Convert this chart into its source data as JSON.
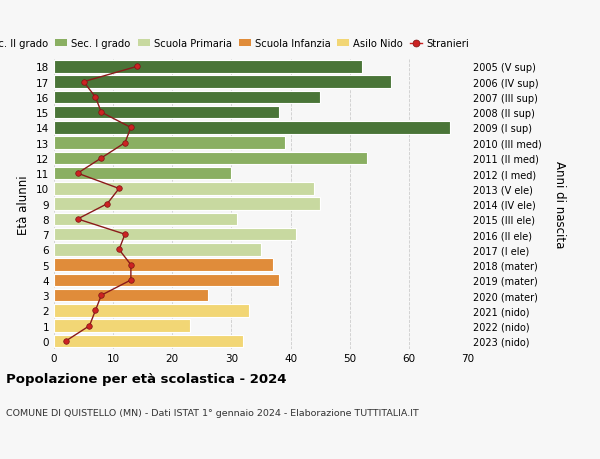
{
  "ages": [
    0,
    1,
    2,
    3,
    4,
    5,
    6,
    7,
    8,
    9,
    10,
    11,
    12,
    13,
    14,
    15,
    16,
    17,
    18
  ],
  "right_labels": [
    "2023 (nido)",
    "2022 (nido)",
    "2021 (nido)",
    "2020 (mater)",
    "2019 (mater)",
    "2018 (mater)",
    "2017 (I ele)",
    "2016 (II ele)",
    "2015 (III ele)",
    "2014 (IV ele)",
    "2013 (V ele)",
    "2012 (I med)",
    "2011 (II med)",
    "2010 (III med)",
    "2009 (I sup)",
    "2008 (II sup)",
    "2007 (III sup)",
    "2006 (IV sup)",
    "2005 (V sup)"
  ],
  "bar_values": [
    32,
    23,
    33,
    26,
    38,
    37,
    35,
    41,
    31,
    45,
    44,
    30,
    53,
    39,
    67,
    38,
    45,
    57,
    52
  ],
  "stranieri": [
    2,
    6,
    7,
    8,
    13,
    13,
    11,
    12,
    4,
    9,
    11,
    4,
    8,
    12,
    13,
    8,
    7,
    5,
    14
  ],
  "bar_colors": [
    "#f2d675",
    "#f2d675",
    "#f2d675",
    "#e08c3a",
    "#e08c3a",
    "#e08c3a",
    "#c8d9a0",
    "#c8d9a0",
    "#c8d9a0",
    "#c8d9a0",
    "#c8d9a0",
    "#8aaf62",
    "#8aaf62",
    "#8aaf62",
    "#4a7538",
    "#4a7538",
    "#4a7538",
    "#4a7538",
    "#4a7538"
  ],
  "legend_labels": [
    "Sec. II grado",
    "Sec. I grado",
    "Scuola Primaria",
    "Scuola Infanzia",
    "Asilo Nido",
    "Stranieri"
  ],
  "legend_colors": [
    "#4a7538",
    "#8aaf62",
    "#c8d9a0",
    "#e08c3a",
    "#f2d675",
    "#cc2222"
  ],
  "ylabel_left": "Età alunni",
  "ylabel_right": "Anni di nascita",
  "title": "Popolazione per età scolastica - 2024",
  "subtitle": "COMUNE DI QUISTELLO (MN) - Dati ISTAT 1° gennaio 2024 - Elaborazione TUTTITALIA.IT",
  "xlim": [
    0,
    70
  ],
  "background_color": "#f7f7f7",
  "grid_color": "#cccccc"
}
